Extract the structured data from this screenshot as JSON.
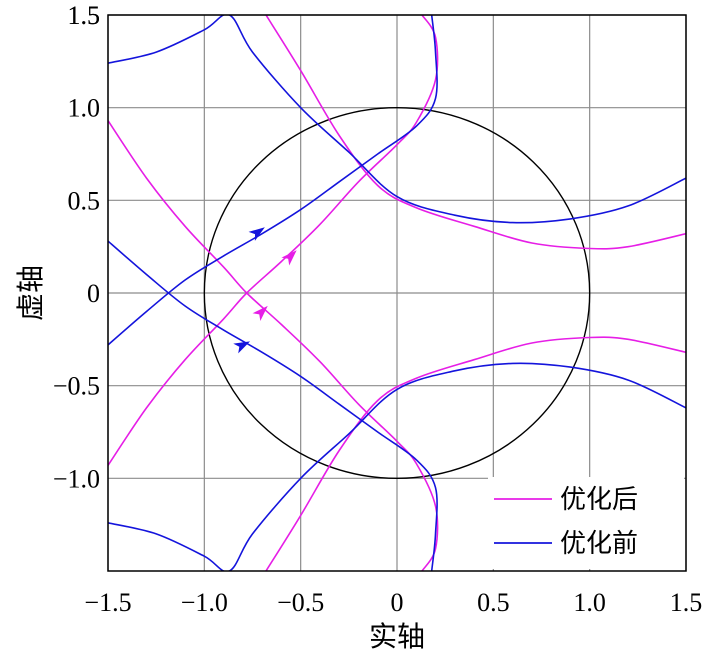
{
  "chart_data": {
    "type": "line",
    "xlabel": "实轴",
    "ylabel": "虚轴",
    "xlim": [
      -1.5,
      1.5
    ],
    "ylim": [
      -1.5,
      1.5
    ],
    "xticks": [
      -1.5,
      -1.0,
      -0.5,
      0,
      0.5,
      1.0,
      1.5
    ],
    "yticks": [
      -1.0,
      -0.5,
      0,
      0.5,
      1.0,
      1.5
    ],
    "xtick_labels": [
      "−1.5",
      "−1.0",
      "−0.5",
      "0",
      "0.5",
      "1.0",
      "1.5"
    ],
    "ytick_labels": [
      "−1.0",
      "−0.5",
      "0",
      "0.5",
      "1.0",
      "1.5"
    ],
    "grid": true,
    "legend_position": "bottom-right",
    "unit_circle": {
      "center": [
        0,
        0
      ],
      "radius": 1,
      "color": "#000000"
    },
    "series": [
      {
        "name": "优化后",
        "color": "#e61ee6",
        "branches": [
          [
            [
              -1.5,
              -0.93
            ],
            [
              -1.3,
              -0.62
            ],
            [
              -1.1,
              -0.36
            ],
            [
              -0.9,
              -0.14
            ],
            [
              -0.78,
              0.0
            ],
            [
              -0.6,
              0.17
            ],
            [
              -0.4,
              0.37
            ],
            [
              -0.2,
              0.6
            ],
            [
              0.0,
              0.8
            ],
            [
              0.1,
              0.92
            ],
            [
              0.2,
              1.15
            ],
            [
              0.2,
              1.38
            ],
            [
              0.13,
              1.5
            ]
          ],
          [
            [
              -1.5,
              0.93
            ],
            [
              -1.3,
              0.62
            ],
            [
              -1.1,
              0.36
            ],
            [
              -0.9,
              0.14
            ],
            [
              -0.78,
              0.0
            ],
            [
              -0.6,
              -0.17
            ],
            [
              -0.4,
              -0.37
            ],
            [
              -0.2,
              -0.6
            ],
            [
              0.0,
              -0.8
            ],
            [
              0.1,
              -0.92
            ],
            [
              0.2,
              -1.15
            ],
            [
              0.2,
              -1.38
            ],
            [
              0.13,
              -1.5
            ]
          ],
          [
            [
              -0.68,
              1.5
            ],
            [
              -0.5,
              1.2
            ],
            [
              -0.3,
              0.85
            ],
            [
              -0.1,
              0.58
            ],
            [
              0.1,
              0.46
            ],
            [
              0.4,
              0.36
            ],
            [
              0.7,
              0.27
            ],
            [
              1.0,
              0.24
            ],
            [
              1.2,
              0.25
            ],
            [
              1.5,
              0.32
            ]
          ],
          [
            [
              -0.68,
              -1.5
            ],
            [
              -0.5,
              -1.2
            ],
            [
              -0.3,
              -0.85
            ],
            [
              -0.1,
              -0.58
            ],
            [
              0.1,
              -0.46
            ],
            [
              0.4,
              -0.36
            ],
            [
              0.7,
              -0.27
            ],
            [
              1.0,
              -0.24
            ],
            [
              1.2,
              -0.25
            ],
            [
              1.5,
              -0.32
            ]
          ]
        ],
        "arrows": [
          {
            "at": [
              -0.55,
              0.2
            ],
            "direction": [
              1,
              1
            ]
          },
          {
            "at": [
              -0.7,
              -0.1
            ],
            "direction": [
              1,
              1
            ]
          }
        ]
      },
      {
        "name": "优化前",
        "color": "#1414dc",
        "branches": [
          [
            [
              -1.5,
              -0.28
            ],
            [
              -1.3,
              -0.1
            ],
            [
              -1.1,
              0.07
            ],
            [
              -0.9,
              0.2
            ],
            [
              -0.7,
              0.32
            ],
            [
              -0.5,
              0.45
            ],
            [
              -0.3,
              0.6
            ],
            [
              -0.1,
              0.75
            ],
            [
              0.1,
              0.9
            ],
            [
              0.2,
              1.05
            ],
            [
              0.2,
              1.3
            ],
            [
              0.18,
              1.5
            ]
          ],
          [
            [
              -1.5,
              0.28
            ],
            [
              -1.3,
              0.1
            ],
            [
              -1.1,
              -0.07
            ],
            [
              -0.9,
              -0.2
            ],
            [
              -0.7,
              -0.32
            ],
            [
              -0.5,
              -0.45
            ],
            [
              -0.3,
              -0.6
            ],
            [
              -0.1,
              -0.75
            ],
            [
              0.1,
              -0.9
            ],
            [
              0.2,
              -1.05
            ],
            [
              0.2,
              -1.3
            ],
            [
              0.18,
              -1.5
            ]
          ],
          [
            [
              -1.5,
              1.24
            ],
            [
              -1.25,
              1.3
            ],
            [
              -1.0,
              1.42
            ],
            [
              -0.87,
              1.5
            ],
            [
              -0.75,
              1.3
            ],
            [
              -0.5,
              1.0
            ],
            [
              -0.25,
              0.76
            ],
            [
              0.0,
              0.52
            ],
            [
              0.3,
              0.42
            ],
            [
              0.6,
              0.38
            ],
            [
              0.9,
              0.4
            ],
            [
              1.2,
              0.47
            ],
            [
              1.5,
              0.62
            ]
          ],
          [
            [
              -1.5,
              -1.24
            ],
            [
              -1.25,
              -1.3
            ],
            [
              -1.0,
              -1.42
            ],
            [
              -0.87,
              -1.5
            ],
            [
              -0.75,
              -1.3
            ],
            [
              -0.5,
              -1.0
            ],
            [
              -0.25,
              -0.76
            ],
            [
              0.0,
              -0.52
            ],
            [
              0.3,
              -0.42
            ],
            [
              0.6,
              -0.38
            ],
            [
              0.9,
              -0.4
            ],
            [
              1.2,
              -0.47
            ],
            [
              1.5,
              -0.62
            ]
          ]
        ],
        "arrows": [
          {
            "at": [
              -0.72,
              0.33
            ],
            "direction": [
              1,
              0.7
            ]
          },
          {
            "at": [
              -0.8,
              -0.28
            ],
            "direction": [
              1,
              0.5
            ]
          }
        ]
      }
    ]
  }
}
